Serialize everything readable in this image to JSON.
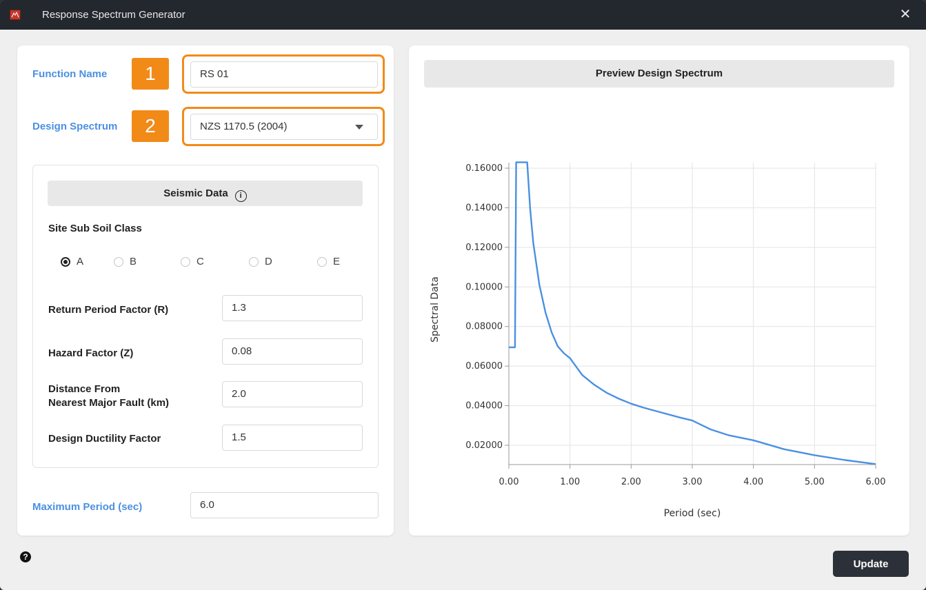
{
  "window": {
    "title": "Response Spectrum Generator",
    "close_glyph": "✕"
  },
  "form": {
    "function_name": {
      "label": "Function Name",
      "badge": "1",
      "value": "RS 01"
    },
    "design_spectrum": {
      "label": "Design Spectrum",
      "badge": "2",
      "value": "NZS 1170.5 (2004)"
    },
    "seismic": {
      "title": "Seismic Data",
      "info_glyph": "i",
      "soil_label": "Site Sub Soil Class",
      "soil_classes": [
        "A",
        "B",
        "C",
        "D",
        "E"
      ],
      "selected_class": "A",
      "fields": [
        {
          "label": "Return Period Factor (R)",
          "value": "1.3"
        },
        {
          "label": "Hazard Factor (Z)",
          "value": "0.08"
        },
        {
          "label_line1": "Distance From",
          "label_line2": "Nearest Major Fault (km)",
          "value": "2.0"
        },
        {
          "label": "Design Ductility Factor",
          "value": "1.5"
        }
      ]
    },
    "max_period": {
      "label": "Maximum Period (sec)",
      "value": "6.0"
    }
  },
  "preview": {
    "title": "Preview Design Spectrum"
  },
  "footer": {
    "help_glyph": "?",
    "update_label": "Update"
  },
  "colors": {
    "accent_blue": "#4a90e2",
    "badge_orange": "#f28a18",
    "curve": "#4a90e2",
    "titlebar": "#23272e"
  },
  "chart_data": {
    "type": "line",
    "xlabel": "Period (sec)",
    "ylabel": "Spectral Data",
    "xlim": [
      0,
      6
    ],
    "ylim": [
      0.01,
      0.165
    ],
    "xticks": [
      "0.00",
      "1.00",
      "2.00",
      "3.00",
      "4.00",
      "5.00",
      "6.00"
    ],
    "yticks": [
      "0.02000",
      "0.04000",
      "0.06000",
      "0.08000",
      "0.10000",
      "0.12000",
      "0.14000",
      "0.16000"
    ],
    "ytick_values": [
      0.02,
      0.04,
      0.06,
      0.08,
      0.1,
      0.12,
      0.14,
      0.16
    ],
    "grid": true,
    "series": [
      {
        "x": [
          0.0,
          0.1,
          0.12,
          0.3,
          0.35,
          0.4,
          0.5,
          0.6,
          0.7,
          0.8,
          0.9,
          1.0,
          1.2,
          1.4,
          1.6,
          1.8,
          2.0,
          2.2,
          2.5,
          2.8,
          3.0,
          3.3,
          3.6,
          4.0,
          4.5,
          5.0,
          5.5,
          6.0
        ],
        "y": [
          0.0695,
          0.0695,
          0.163,
          0.163,
          0.139,
          0.122,
          0.101,
          0.087,
          0.077,
          0.07,
          0.0665,
          0.064,
          0.0555,
          0.0505,
          0.0465,
          0.0435,
          0.041,
          0.039,
          0.0365,
          0.034,
          0.0325,
          0.028,
          0.025,
          0.0225,
          0.018,
          0.015,
          0.0125,
          0.0105
        ]
      }
    ]
  }
}
